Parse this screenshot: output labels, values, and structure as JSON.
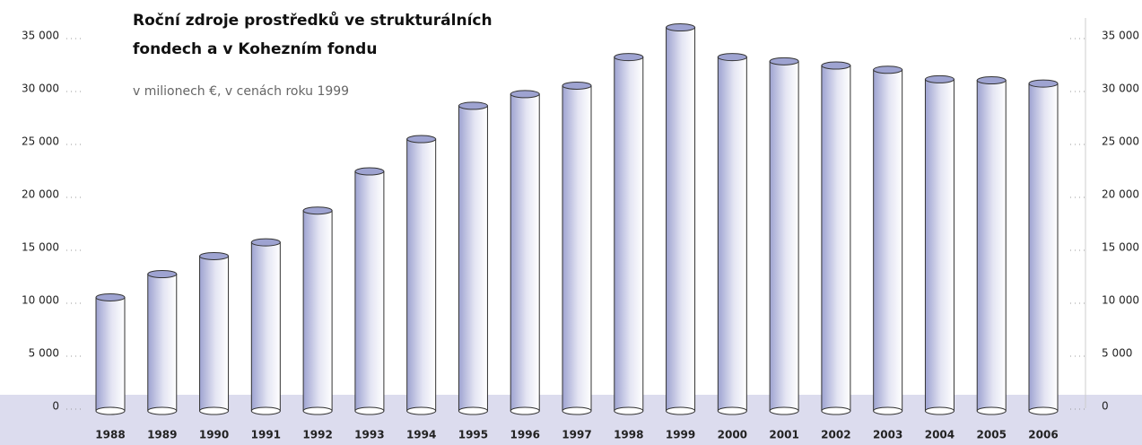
{
  "chart_data": {
    "type": "bar",
    "title": [
      "Roční zdroje prostředků ve strukturálních",
      "fondech a v Kohezním fondu"
    ],
    "subtitle": "v milionech €, v cenách roku 1999",
    "categories": [
      "1988",
      "1989",
      "1990",
      "1991",
      "1992",
      "1993",
      "1994",
      "1995",
      "1996",
      "1997",
      "1998",
      "1999",
      "2000",
      "2001",
      "2002",
      "2003",
      "2004",
      "2005",
      "2006"
    ],
    "values": [
      10300,
      12500,
      14200,
      15500,
      18500,
      22200,
      25250,
      28400,
      29500,
      30300,
      33000,
      35800,
      33000,
      32600,
      32200,
      31800,
      30900,
      30800,
      30500
    ],
    "color": "#9ea3d1",
    "ylim": [
      0,
      35000
    ],
    "yticks": [
      0,
      {
        "value": 5000,
        "label": "5 000"
      },
      {
        "value": 10000,
        "label": "10 000"
      },
      {
        "value": 15000,
        "label": "15 000"
      },
      {
        "value": 20000,
        "label": "20 000"
      },
      {
        "value": 25000,
        "label": "25 000"
      },
      {
        "value": 30000,
        "label": "30 000"
      },
      {
        "value": 35000,
        "label": "35 000"
      }
    ]
  }
}
